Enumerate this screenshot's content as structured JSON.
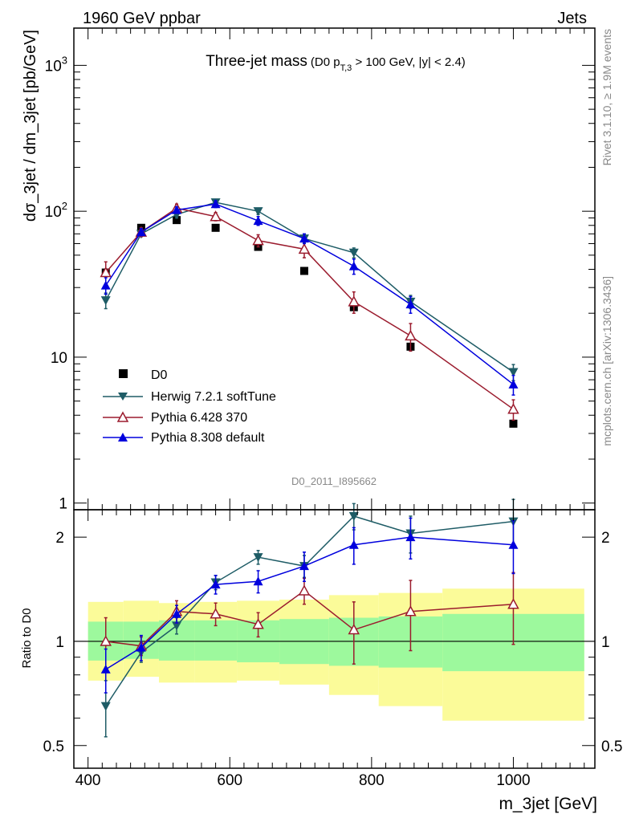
{
  "header": {
    "left": "1960 GeV ppbar",
    "right": "Jets"
  },
  "side": {
    "rivet": "Rivet 3.1.10, ≥ 1.9M events",
    "mcplots": "mcplots.cern.ch [arXiv:1306.3436]"
  },
  "chart_data": {
    "type": "line",
    "title": "Three-jet mass",
    "subtitle_pre": "(D0 p",
    "subtitle_sub": "T,3",
    "subtitle_post": " > 100 GeV, |y| < 2.4)",
    "analysis_label": "D0_2011_I895662",
    "xlabel": "m_3jet [GeV]",
    "ylabel": "dσ_3jet / dm_3jet [pb/GeV]",
    "ratio_ylabel": "Ratio to D0",
    "xlim": [
      380,
      1115
    ],
    "ylim": [
      0.9,
      1800
    ],
    "ylog": true,
    "ratio_ylim": [
      0.43,
      2.4
    ],
    "ratio_ylog": true,
    "x_ticks": [
      "400",
      "600",
      "800",
      "1000"
    ],
    "y_ticks": [
      "1",
      "10",
      "10²",
      "10³"
    ],
    "ratio_ticks": [
      "0.5",
      "1",
      "2"
    ],
    "bin_edges": [
      400,
      450,
      500,
      550,
      610,
      670,
      740,
      810,
      900,
      1100
    ],
    "x": [
      425,
      475,
      525,
      580,
      640,
      705,
      775,
      855,
      1000
    ],
    "series": [
      {
        "name": "D0",
        "marker": "square",
        "color": "#000000",
        "values": [
          38,
          77,
          87,
          77,
          57,
          39,
          22,
          11.8,
          3.5
        ],
        "ratio_band_inner": [
          [
            0.88,
            1.14
          ],
          [
            0.89,
            1.14
          ],
          [
            0.88,
            1.15
          ],
          [
            0.88,
            1.15
          ],
          [
            0.87,
            1.15
          ],
          [
            0.86,
            1.16
          ],
          [
            0.85,
            1.17
          ],
          [
            0.84,
            1.18
          ],
          [
            0.82,
            1.2
          ]
        ],
        "ratio_band_outer": [
          [
            0.77,
            1.3
          ],
          [
            0.79,
            1.31
          ],
          [
            0.76,
            1.29
          ],
          [
            0.76,
            1.3
          ],
          [
            0.77,
            1.31
          ],
          [
            0.75,
            1.32
          ],
          [
            0.7,
            1.36
          ],
          [
            0.65,
            1.38
          ],
          [
            0.59,
            1.42
          ]
        ]
      },
      {
        "name": "Herwig 7.2.1 softTune",
        "marker": "triangle-down",
        "color": "#1e5c66",
        "values": [
          24.5,
          70,
          95,
          115,
          100,
          65,
          52,
          24,
          7.9
        ],
        "errors": [
          3,
          3,
          5,
          5,
          5,
          4,
          4,
          2.5,
          1
        ],
        "ratios": [
          0.65,
          0.93,
          1.11,
          1.48,
          1.75,
          1.65,
          2.3,
          2.05,
          2.22
        ],
        "ratio_errors": [
          0.12,
          0.06,
          0.06,
          0.07,
          0.08,
          0.12,
          0.2,
          0.25,
          0.35
        ]
      },
      {
        "name": "Pythia 6.428 370",
        "marker": "triangle-open",
        "color": "#9b1c2e",
        "values": [
          38,
          72,
          105,
          92,
          63,
          55,
          24,
          14,
          4.4
        ],
        "errors": [
          7,
          5,
          7,
          6,
          6,
          7,
          4,
          3,
          0.7
        ],
        "ratios": [
          1.0,
          0.97,
          1.22,
          1.2,
          1.12,
          1.4,
          1.08,
          1.22,
          1.28
        ],
        "ratio_errors": [
          0.17,
          0.06,
          0.09,
          0.09,
          0.09,
          0.12,
          0.22,
          0.28,
          0.3
        ]
      },
      {
        "name": "Pythia 8.308 default",
        "marker": "triangle-up",
        "color": "#0000dd",
        "values": [
          31,
          72,
          102,
          112,
          86,
          65,
          42,
          23,
          6.5
        ],
        "errors": [
          4,
          4,
          5,
          6,
          6,
          5,
          5,
          3,
          1
        ],
        "ratios": [
          0.83,
          0.96,
          1.2,
          1.46,
          1.49,
          1.65,
          1.9,
          2.0,
          1.9
        ],
        "ratio_errors": [
          0.12,
          0.08,
          0.07,
          0.09,
          0.11,
          0.16,
          0.23,
          0.27,
          0.33
        ]
      }
    ]
  }
}
